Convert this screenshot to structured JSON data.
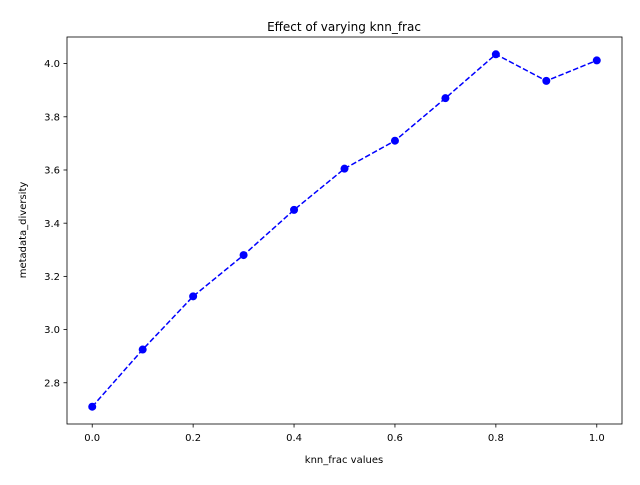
{
  "chart_data": {
    "type": "line",
    "title": "Effect of varying knn_frac",
    "xlabel": "knn_frac values",
    "ylabel": "metadata_diversity",
    "x": [
      0.0,
      0.1,
      0.2,
      0.3,
      0.4,
      0.5,
      0.6,
      0.7,
      0.8,
      0.9,
      1.0
    ],
    "series": [
      {
        "values": [
          2.71,
          2.925,
          3.125,
          3.28,
          3.45,
          3.605,
          3.71,
          3.87,
          4.035,
          3.935,
          4.012
        ],
        "color": "#0000ff",
        "line_style": "dashed",
        "marker": "circle"
      }
    ],
    "xlim": [
      -0.05,
      1.05
    ],
    "ylim": [
      2.645,
      4.1
    ],
    "xticks": [
      0.0,
      0.2,
      0.4,
      0.6,
      0.8,
      1.0
    ],
    "xtick_labels": [
      "0.0",
      "0.2",
      "0.4",
      "0.6",
      "0.8",
      "1.0"
    ],
    "yticks": [
      2.8,
      3.0,
      3.2,
      3.4,
      3.6,
      3.8,
      4.0
    ],
    "ytick_labels": [
      "2.8",
      "3.0",
      "3.2",
      "3.4",
      "3.6",
      "3.8",
      "4.0"
    ],
    "grid": false,
    "legend": "none"
  }
}
